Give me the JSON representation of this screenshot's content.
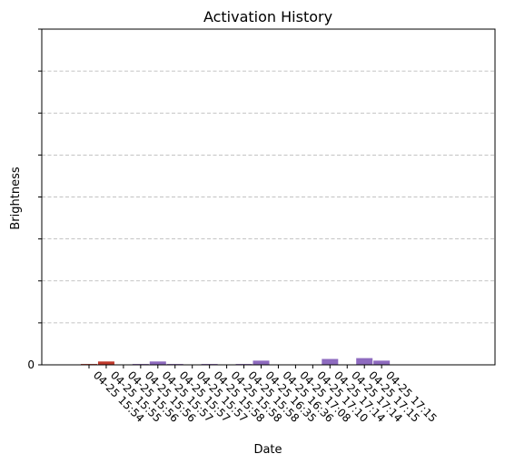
{
  "chart_data": {
    "type": "bar",
    "title": "Activation History",
    "xlabel": "Date",
    "ylabel": "Brightness",
    "ylim": [
      0,
      400
    ],
    "y_ticks": [
      0,
      50,
      100,
      150,
      200,
      250,
      300,
      350,
      400
    ],
    "y_tick_labels": [
      "0",
      "",
      "",
      "",
      "",
      "",
      "",
      "",
      ""
    ],
    "grid": "horizontal-dashed",
    "categories": [
      "04-25 15:54",
      "04-25 15:55",
      "04-25 15:56",
      "04-25 15:56",
      "04-25 15:57",
      "04-25 15:57",
      "04-25 15:57",
      "04-25 15:58",
      "04-25 15:58",
      "04-25 15:58",
      "04-25 16:35",
      "04-25 16:36",
      "04-25 17:08",
      "04-25 17:10",
      "04-25 17:14",
      "04-25 17:14",
      "04-25 17:15",
      "04-25 17:15"
    ],
    "values": [
      1,
      4,
      0,
      1,
      4,
      1,
      0,
      1,
      0,
      1,
      5,
      0,
      0,
      0,
      7,
      0,
      8,
      5
    ],
    "bar_colors": [
      "#c0392b",
      "#c0392b",
      "#8e6bbf",
      "#8e6bbf",
      "#8e6bbf",
      "#8e6bbf",
      "#8e6bbf",
      "#8e6bbf",
      "#8e6bbf",
      "#8e6bbf",
      "#8e6bbf",
      "#8e6bbf",
      "#8e6bbf",
      "#8e6bbf",
      "#8e6bbf",
      "#8e6bbf",
      "#8e6bbf",
      "#8e6bbf"
    ]
  }
}
